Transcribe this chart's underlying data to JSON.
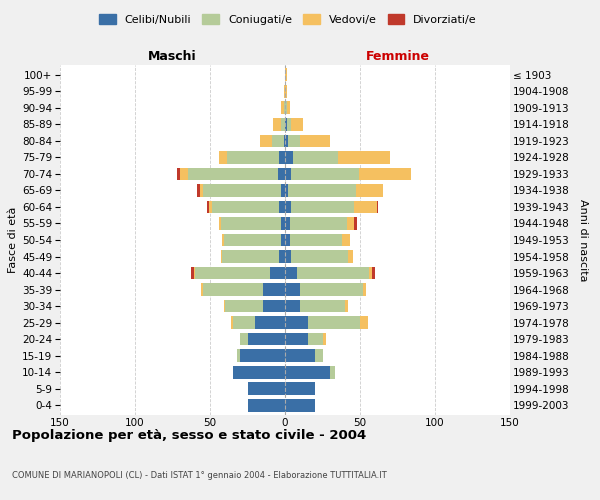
{
  "age_groups": [
    "0-4",
    "5-9",
    "10-14",
    "15-19",
    "20-24",
    "25-29",
    "30-34",
    "35-39",
    "40-44",
    "45-49",
    "50-54",
    "55-59",
    "60-64",
    "65-69",
    "70-74",
    "75-79",
    "80-84",
    "85-89",
    "90-94",
    "95-99",
    "100+"
  ],
  "birth_years": [
    "1999-2003",
    "1994-1998",
    "1989-1993",
    "1984-1988",
    "1979-1983",
    "1974-1978",
    "1969-1973",
    "1964-1968",
    "1959-1963",
    "1954-1958",
    "1949-1953",
    "1944-1948",
    "1939-1943",
    "1934-1938",
    "1929-1933",
    "1924-1928",
    "1919-1923",
    "1914-1918",
    "1909-1913",
    "1904-1908",
    "≤ 1903"
  ],
  "colors": {
    "celibi": "#3a6fa6",
    "coniugati": "#b5cb99",
    "vedovi": "#f5c060",
    "divorziati": "#c0392b"
  },
  "maschi": {
    "celibi": [
      25,
      25,
      35,
      30,
      25,
      20,
      15,
      15,
      10,
      4,
      3,
      3,
      4,
      3,
      5,
      4,
      1,
      0,
      0,
      0,
      0
    ],
    "coniugati": [
      0,
      0,
      0,
      2,
      5,
      15,
      25,
      40,
      50,
      38,
      38,
      40,
      45,
      52,
      60,
      35,
      8,
      3,
      1,
      0,
      0
    ],
    "vedovi": [
      0,
      0,
      0,
      0,
      0,
      1,
      1,
      1,
      1,
      1,
      1,
      1,
      2,
      2,
      5,
      5,
      8,
      5,
      2,
      1,
      0
    ],
    "divorziati": [
      0,
      0,
      0,
      0,
      0,
      0,
      0,
      0,
      2,
      0,
      0,
      0,
      1,
      2,
      2,
      0,
      0,
      0,
      0,
      0,
      0
    ]
  },
  "femmine": {
    "celibi": [
      20,
      20,
      30,
      20,
      15,
      15,
      10,
      10,
      8,
      4,
      3,
      3,
      4,
      2,
      4,
      5,
      2,
      1,
      0,
      0,
      0
    ],
    "coniugati": [
      0,
      0,
      3,
      5,
      10,
      35,
      30,
      42,
      48,
      38,
      35,
      38,
      42,
      45,
      45,
      30,
      8,
      3,
      1,
      0,
      0
    ],
    "vedovi": [
      0,
      0,
      0,
      0,
      2,
      5,
      2,
      2,
      2,
      3,
      5,
      5,
      15,
      18,
      35,
      35,
      20,
      8,
      2,
      1,
      1
    ],
    "divorziati": [
      0,
      0,
      0,
      0,
      0,
      0,
      0,
      0,
      2,
      0,
      0,
      2,
      1,
      0,
      0,
      0,
      0,
      0,
      0,
      0,
      0
    ]
  },
  "xlim": 150,
  "xticks": [
    -150,
    -100,
    -50,
    0,
    50,
    100,
    150
  ],
  "title": "Popolazione per età, sesso e stato civile - 2004",
  "subtitle": "COMUNE DI MARIANOPOLI (CL) - Dati ISTAT 1° gennaio 2004 - Elaborazione TUTTITALIA.IT",
  "ylabel_left": "Fasce di età",
  "ylabel_right": "Anni di nascita",
  "xlabel_maschi": "Maschi",
  "xlabel_femmine": "Femmine",
  "legend_labels": [
    "Celibi/Nubili",
    "Coniugati/e",
    "Vedovi/e",
    "Divorziati/e"
  ],
  "bg_color": "#f0f0f0",
  "plot_bg": "#ffffff",
  "bar_height": 0.78
}
